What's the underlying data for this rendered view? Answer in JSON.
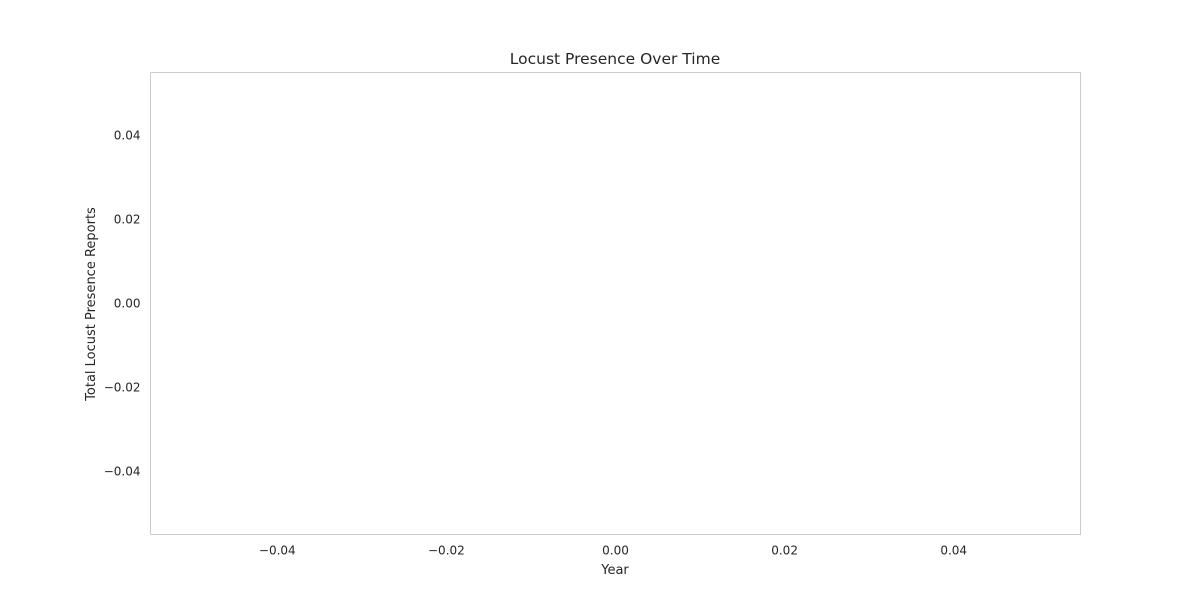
{
  "chart_data": {
    "type": "line",
    "title": "Locust Presence Over Time",
    "xlabel": "Year",
    "ylabel": "Total Locust Presence Reports",
    "xlim": [
      -0.055,
      0.055
    ],
    "ylim": [
      -0.055,
      0.055
    ],
    "x_ticks": [
      -0.04,
      -0.02,
      0.0,
      0.02,
      0.04
    ],
    "x_tick_labels": [
      "−0.04",
      "−0.02",
      "0.00",
      "0.02",
      "0.04"
    ],
    "y_ticks": [
      0.04,
      0.02,
      0.0,
      -0.02,
      -0.04
    ],
    "y_tick_labels": [
      "0.04",
      "0.02",
      "0.00",
      "−0.02",
      "−0.04"
    ],
    "grid": false,
    "series": []
  }
}
